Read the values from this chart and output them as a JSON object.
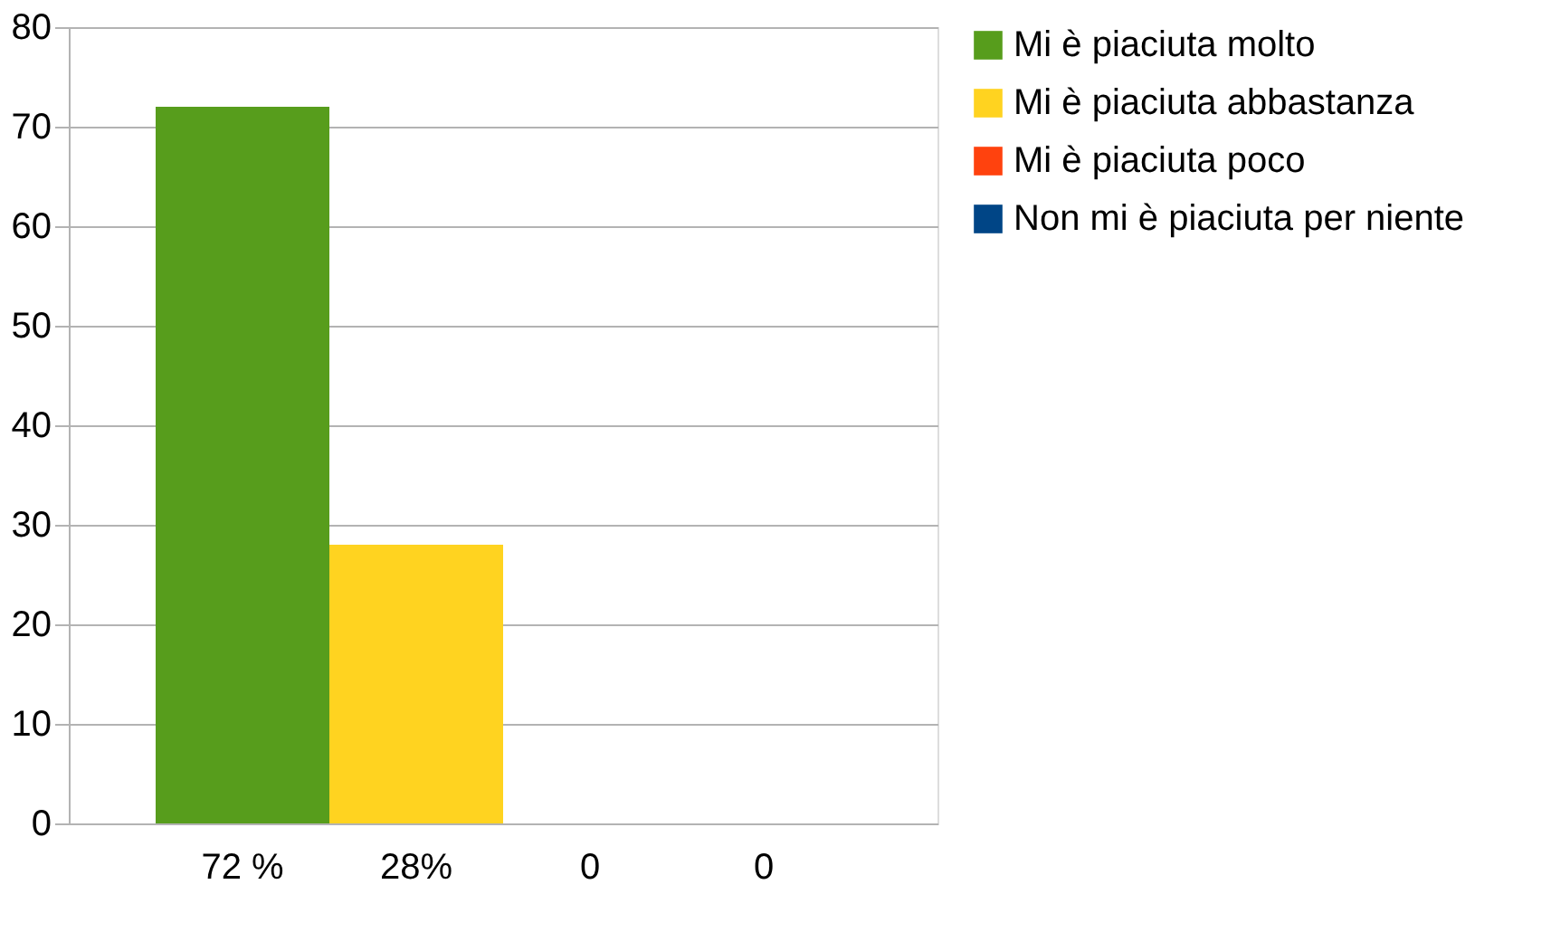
{
  "chart_data": {
    "type": "bar",
    "categories": [
      "72 %",
      "28%",
      "0",
      "0"
    ],
    "series": [
      {
        "name": "Mi è piaciuta molto",
        "color": "#579d1c",
        "values": [
          72,
          null,
          null,
          null
        ]
      },
      {
        "name": "Mi è piaciuta abbastanza",
        "color": "#ffd320",
        "values": [
          null,
          28,
          null,
          null
        ]
      },
      {
        "name": "Mi è piaciuta poco",
        "color": "#ff420e",
        "values": [
          null,
          null,
          0,
          null
        ]
      },
      {
        "name": "Non mi è piaciuta per niente",
        "color": "#004586",
        "values": [
          null,
          null,
          null,
          0
        ]
      }
    ],
    "ylim": [
      0,
      80
    ],
    "yticks": [
      0,
      10,
      20,
      30,
      40,
      50,
      60,
      70,
      80
    ],
    "grid": "y",
    "legend": "right"
  }
}
